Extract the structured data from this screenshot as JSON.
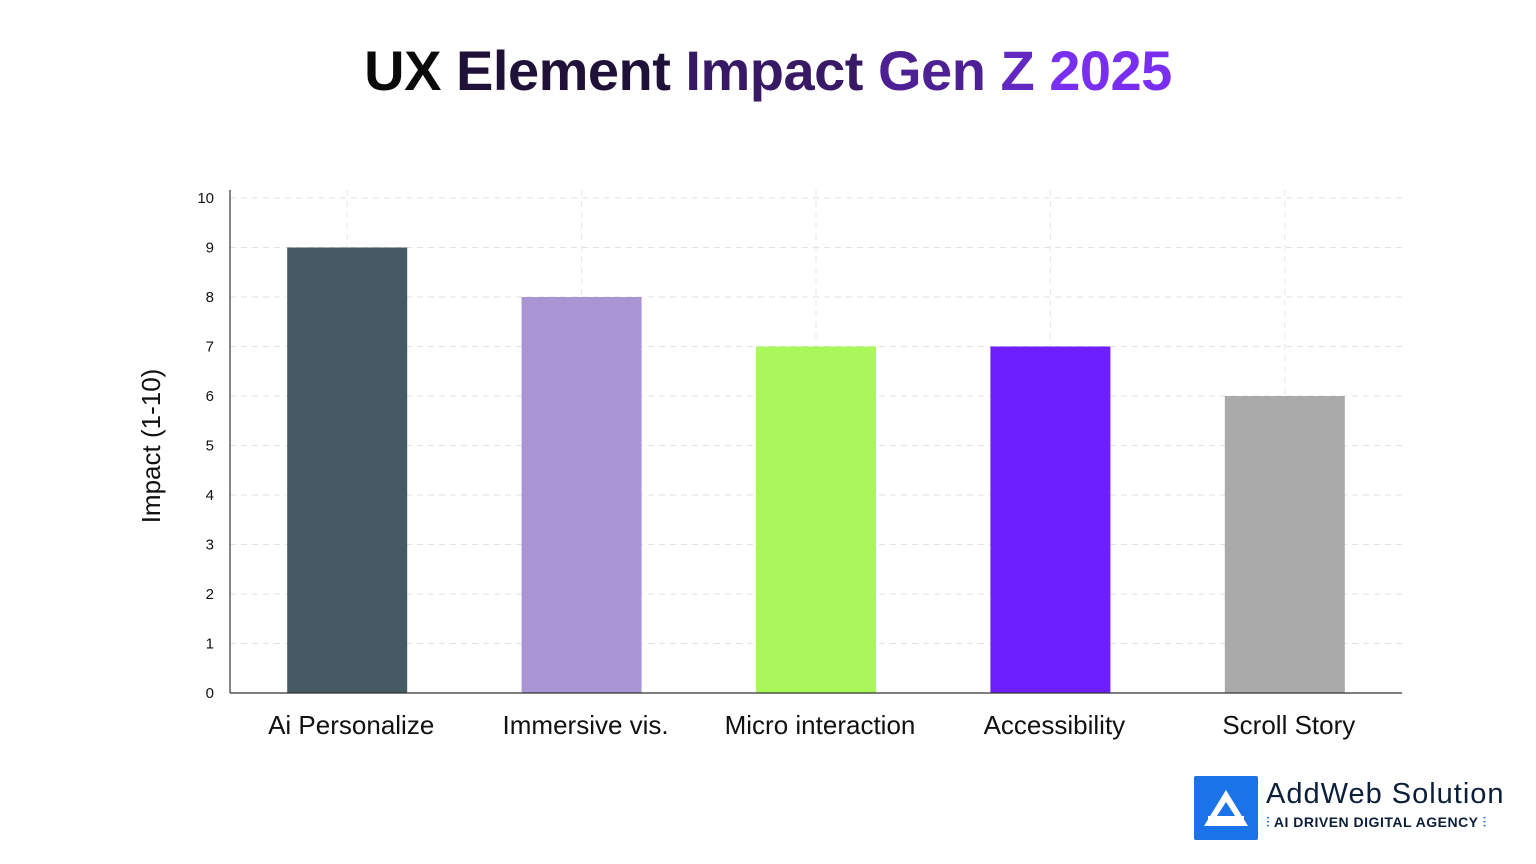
{
  "chart_data": {
    "type": "bar",
    "title_parts": [
      "UX",
      "Element",
      "Impact",
      "Gen",
      "Z",
      "2025"
    ],
    "title_gradient": [
      "#0a0a0a",
      "#7a2ff0"
    ],
    "ylabel": "Impact (1-10)",
    "xlabel": "",
    "ylim": [
      0,
      10
    ],
    "yticks": [
      "0",
      "1",
      "2",
      "3",
      "4",
      "5",
      "6",
      "7",
      "8",
      "9",
      "10"
    ],
    "grid": true,
    "categories": [
      "Ai Personalize",
      "Immersive vis.",
      "Micro interaction",
      "Accessibility",
      "Scroll Story"
    ],
    "values": [
      9,
      8,
      7,
      7,
      6
    ],
    "colors": [
      "#455a64",
      "#a995d4",
      "#aaf75c",
      "#6d1fff",
      "#aaaaaa"
    ]
  },
  "brand": {
    "name": "AddWeb Solution",
    "tagline": "AI DRIVEN DIGITAL AGENCY",
    "logo_icon": "triangle-a-logo-icon",
    "color": "#1a73e8"
  }
}
